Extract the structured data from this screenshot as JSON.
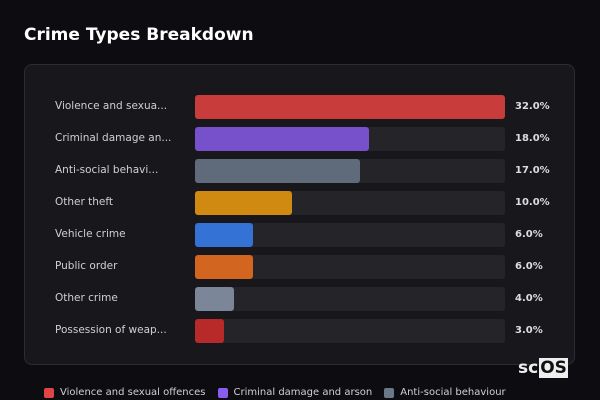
{
  "title": "Crime Types Breakdown",
  "logo": {
    "pre": "sc",
    "box": "OS"
  },
  "chart_data": {
    "type": "bar",
    "orientation": "horizontal",
    "title": "Crime Types Breakdown",
    "categories": [
      "Violence and sexua...",
      "Criminal damage an...",
      "Anti-social behavi...",
      "Other theft",
      "Vehicle crime",
      "Public order",
      "Other crime",
      "Possession of weap..."
    ],
    "values": [
      32.0,
      18.0,
      17.0,
      10.0,
      6.0,
      6.0,
      4.0,
      3.0
    ],
    "value_labels": [
      "32.0%",
      "18.0%",
      "17.0%",
      "10.0%",
      "6.0%",
      "6.0%",
      "4.0%",
      "3.0%"
    ],
    "colors": [
      "#c83c3c",
      "#7750cc",
      "#5f6b7a",
      "#d08a12",
      "#3572d6",
      "#d2651f",
      "#7b8698",
      "#b82a2a"
    ],
    "xlim": [
      0,
      32
    ],
    "legend": {
      "placement": "bottom",
      "entries": [
        {
          "name": "Violence and sexual offences",
          "color": "#e04444"
        },
        {
          "name": "Criminal damage and arson",
          "color": "#8a5cf0"
        },
        {
          "name": "Anti-social behaviour",
          "color": "#6b7888"
        }
      ]
    }
  }
}
